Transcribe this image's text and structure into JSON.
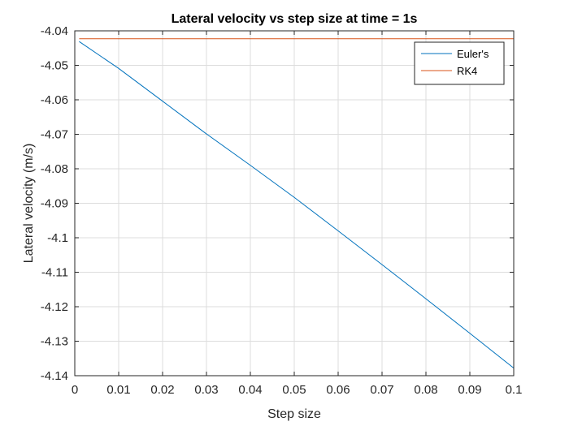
{
  "chart_data": {
    "type": "line",
    "title": "Lateral velocity vs step size at time = 1s",
    "xlabel": "Step size",
    "ylabel": "Lateral velocity (m/s)",
    "xlim": [
      0,
      0.1
    ],
    "ylim": [
      -4.14,
      -4.04
    ],
    "xticks": [
      0,
      0.01,
      0.02,
      0.03,
      0.04,
      0.05,
      0.06,
      0.07,
      0.08,
      0.09,
      0.1
    ],
    "xtick_labels": [
      "0",
      "0.01",
      "0.02",
      "0.03",
      "0.04",
      "0.05",
      "0.06",
      "0.07",
      "0.08",
      "0.09",
      "0.1"
    ],
    "yticks": [
      -4.04,
      -4.05,
      -4.06,
      -4.07,
      -4.08,
      -4.09,
      -4.1,
      -4.11,
      -4.12,
      -4.13,
      -4.14
    ],
    "ytick_labels": [
      "-4.04",
      "-4.05",
      "-4.06",
      "-4.07",
      "-4.08",
      "-4.09",
      "-4.1",
      "-4.11",
      "-4.12",
      "-4.13",
      "-4.14"
    ],
    "grid": true,
    "legend_position": "top-right",
    "series": [
      {
        "name": "Euler's",
        "color": "#0072BD",
        "x": [
          0.001,
          0.01,
          0.02,
          0.03,
          0.04,
          0.05,
          0.06,
          0.07,
          0.08,
          0.09,
          0.1
        ],
        "y": [
          -4.0431,
          -4.0509,
          -4.0604,
          -4.0699,
          -4.079,
          -4.0883,
          -4.098,
          -4.1078,
          -4.1177,
          -4.1277,
          -4.1378
        ]
      },
      {
        "name": "RK4",
        "color": "#D95319",
        "x": [
          0.001,
          0.1
        ],
        "y": [
          -4.0423,
          -4.0423
        ]
      }
    ]
  }
}
